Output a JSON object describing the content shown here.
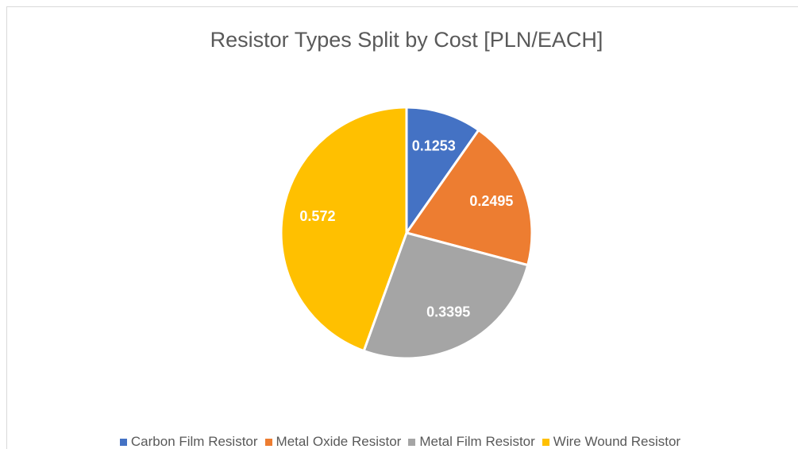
{
  "chart_data": {
    "type": "pie",
    "title": "Resistor Types Split by Cost [PLN/EACH]",
    "categories": [
      "Carbon Film Resistor",
      "Metal Oxide Resistor",
      "Metal Film Resistor",
      "Wire Wound Resistor"
    ],
    "values": [
      0.1253,
      0.2495,
      0.3395,
      0.572
    ],
    "colors": [
      "#4472c4",
      "#ed7d31",
      "#a5a5a5",
      "#ffc000"
    ],
    "legend": "bottom"
  }
}
